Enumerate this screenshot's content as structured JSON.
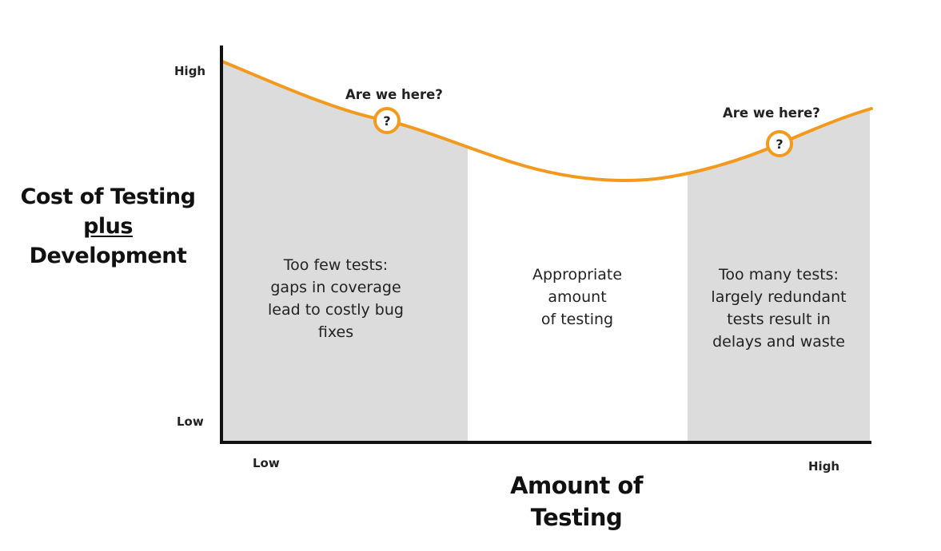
{
  "y_axis": {
    "label_line1": "Cost of Testing",
    "label_line2": "plus",
    "label_line3": "Development",
    "high_label": "High",
    "low_label": "Low"
  },
  "x_axis": {
    "label_line1": "Amount of",
    "label_line2": "Testing",
    "low_label": "Low",
    "high_label": "High"
  },
  "regions": {
    "left": {
      "line1": "Too few tests:",
      "line2": "gaps in coverage",
      "line3": "lead to costly bug",
      "line4": "fixes"
    },
    "middle": {
      "line1": "Appropriate",
      "line2": "amount",
      "line3": "of testing"
    },
    "right": {
      "line1": "Too many tests:",
      "line2": "largely redundant",
      "line3": "tests result in",
      "line4": "delays and waste"
    }
  },
  "markers": {
    "left": {
      "question": "Are we here?",
      "symbol": "?"
    },
    "right": {
      "question": "Are we here?",
      "symbol": "?"
    }
  },
  "colors": {
    "curve": "#F39A1E",
    "shaded_region": "#DCDCDC",
    "axis": "#111111"
  }
}
